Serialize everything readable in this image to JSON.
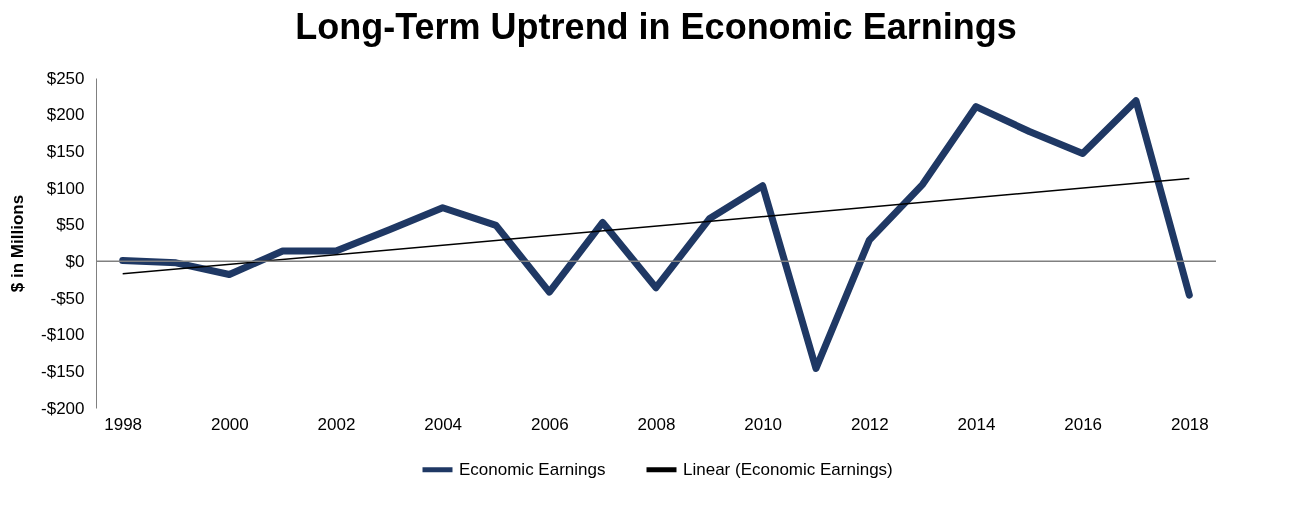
{
  "chart_data": {
    "type": "line",
    "title": "Long-Term Uptrend in Economic Earnings",
    "ylabel": "$ in Millions",
    "x": [
      1998,
      1999,
      2000,
      2001,
      2002,
      2003,
      2004,
      2005,
      2006,
      2007,
      2008,
      2009,
      2010,
      2011,
      2012,
      2013,
      2014,
      2015,
      2016,
      2017,
      2018
    ],
    "series": [
      {
        "name": "Economic Earnings",
        "color": "#1f3864",
        "values": [
          1,
          -2,
          -18,
          14,
          14,
          43,
          73,
          49,
          -42,
          53,
          -36,
          58,
          103,
          -146,
          29,
          105,
          211,
          177,
          147,
          219,
          -46
        ]
      },
      {
        "name": "Linear (Economic Earnings)",
        "color": "#000000",
        "x": [
          1998,
          2018
        ],
        "values": [
          -17,
          113
        ]
      }
    ],
    "xlim": [
      1997.5,
      2018.5
    ],
    "xticks": [
      1998,
      2000,
      2002,
      2004,
      2006,
      2008,
      2010,
      2012,
      2014,
      2016,
      2018
    ],
    "ylim": [
      -200,
      250
    ],
    "yticks": [
      {
        "value": -200,
        "label": "-$200"
      },
      {
        "value": -150,
        "label": "-$150"
      },
      {
        "value": -100,
        "label": "-$100"
      },
      {
        "value": -50,
        "label": "-$50"
      },
      {
        "value": 0,
        "label": "$0"
      },
      {
        "value": 50,
        "label": "$50"
      },
      {
        "value": 100,
        "label": "$100"
      },
      {
        "value": 150,
        "label": "$150"
      },
      {
        "value": 200,
        "label": "$200"
      },
      {
        "value": 250,
        "label": "$250"
      }
    ],
    "ref_lines": [
      {
        "axis": "y",
        "value": 0,
        "color": "#808080"
      }
    ],
    "grid": false,
    "legend": "bottom",
    "marker": "none",
    "line_style": "solid"
  }
}
